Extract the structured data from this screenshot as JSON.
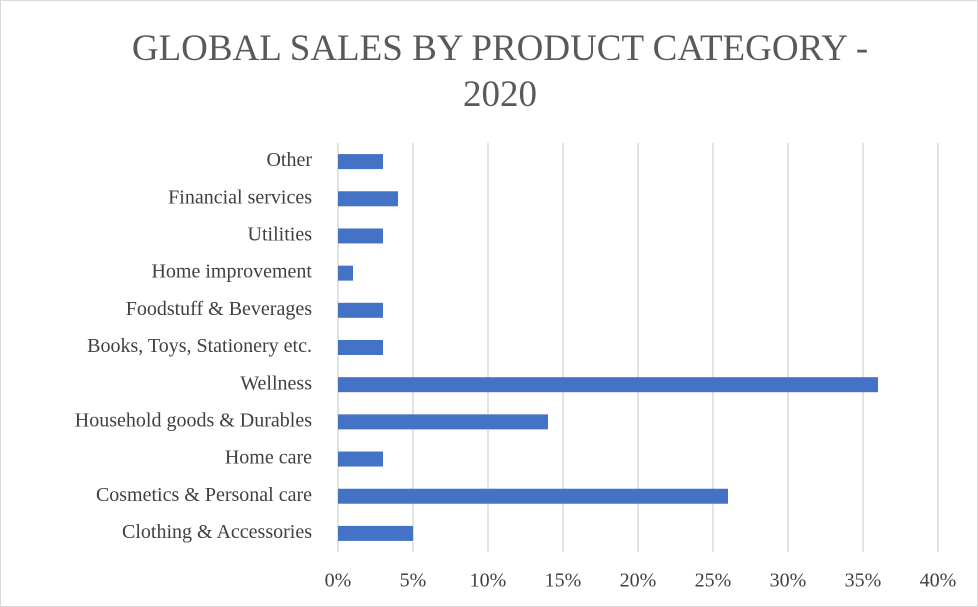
{
  "chart_data": {
    "type": "bar",
    "orientation": "horizontal",
    "title": "GLOBAL SALES BY PRODUCT CATEGORY - 2020",
    "categories": [
      "Clothing & Accessories",
      "Cosmetics & Personal care",
      "Home care",
      "Household goods & Durables",
      "Wellness",
      "Books, Toys, Stationery etc.",
      "Foodstuff & Beverages",
      "Home improvement",
      "Utilities",
      "Financial services",
      "Other"
    ],
    "values": [
      5,
      26,
      3,
      14,
      36,
      3,
      3,
      1,
      3,
      4,
      3
    ],
    "color": "#4472c4",
    "xlim": [
      0,
      40
    ],
    "xticks": [
      {
        "value": 0,
        "label": "0%"
      },
      {
        "value": 5,
        "label": "5%"
      },
      {
        "value": 10,
        "label": "10%"
      },
      {
        "value": 15,
        "label": "15%"
      },
      {
        "value": 20,
        "label": "20%"
      },
      {
        "value": 25,
        "label": "25%"
      },
      {
        "value": 30,
        "label": "30%"
      },
      {
        "value": 35,
        "label": "35%"
      },
      {
        "value": 40,
        "label": "40%"
      }
    ],
    "grid": true
  }
}
